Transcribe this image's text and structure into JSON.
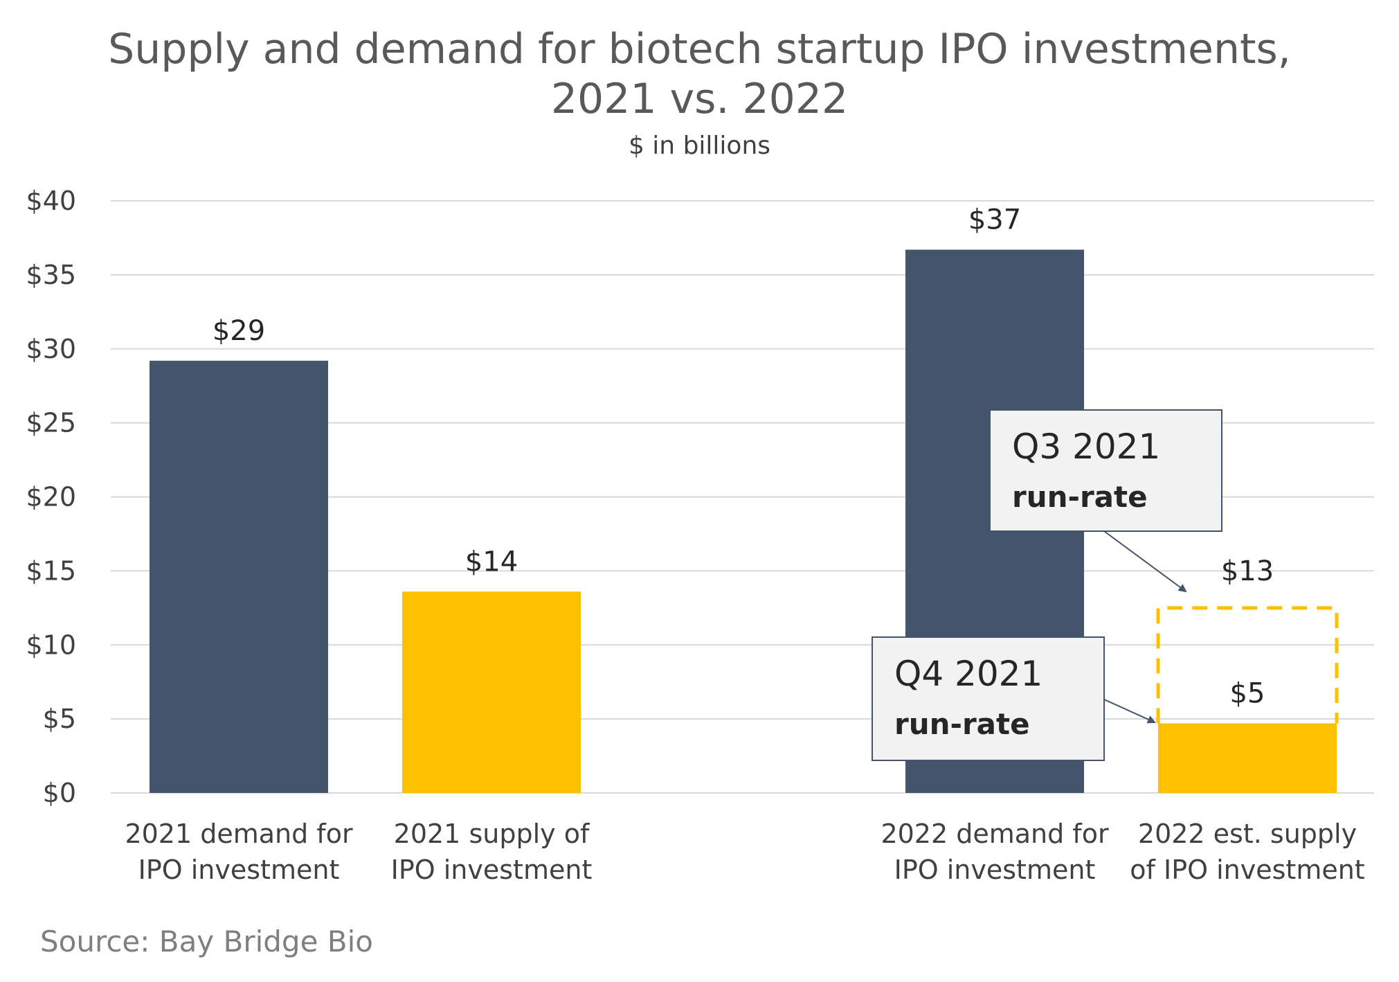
{
  "title_line1": "Supply and demand for biotech startup IPO investments,",
  "title_line2": "2021 vs. 2022",
  "subtitle": "$ in billions",
  "source": "Source: Bay Bridge Bio",
  "colors": {
    "demand": "#44546a",
    "supply": "#ffc000",
    "grid": "#d9d9d9"
  },
  "chart_data": {
    "type": "bar",
    "ylim": [
      0,
      40
    ],
    "y_ticks": [
      0,
      5,
      10,
      15,
      20,
      25,
      30,
      35,
      40
    ],
    "y_tick_labels": [
      "$0",
      "$5",
      "$10",
      "$15",
      "$20",
      "$25",
      "$30",
      "$35",
      "$40"
    ],
    "bars": [
      {
        "category": [
          "2021  demand for",
          "IPO investment"
        ],
        "value": 29.2,
        "label": "$29",
        "series": "demand"
      },
      {
        "category": [
          "2021  supply of",
          "IPO investment"
        ],
        "value": 13.6,
        "label": "$14",
        "series": "supply"
      },
      {
        "category": [
          "2022 demand for",
          "IPO investment"
        ],
        "value": 36.7,
        "label": "$37",
        "series": "demand"
      },
      {
        "category": [
          "2022 est. supply",
          "of IPO investment"
        ],
        "value": 4.7,
        "label": "$5",
        "series": "supply"
      }
    ],
    "projection": {
      "value": 12.5,
      "label": "$13",
      "style": "dashed outline"
    },
    "annotations": [
      {
        "line1": "Q3 2021",
        "line2": "run-rate",
        "target": "projection"
      },
      {
        "line1": "Q4 2021",
        "line2": "run-rate",
        "target": "bar-4"
      }
    ]
  }
}
